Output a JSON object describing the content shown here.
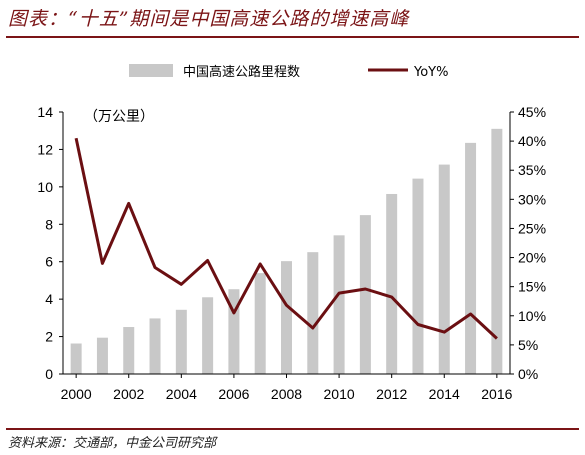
{
  "header": {
    "title": "图表：“十五”期间是中国高速公路的增速高峰"
  },
  "footer": {
    "source": "资料来源：交通部，中金公司研究部"
  },
  "colors": {
    "bar": "#c8c8c8",
    "line": "#6b0f12",
    "accent": "#7b1416"
  },
  "chart_data": {
    "type": "bar",
    "categories": [
      "2000",
      "2001",
      "2002",
      "2003",
      "2004",
      "2005",
      "2006",
      "2007",
      "2008",
      "2009",
      "2010",
      "2011",
      "2012",
      "2013",
      "2014",
      "2015",
      "2016"
    ],
    "x_tick_labels": [
      "2000",
      "2002",
      "2004",
      "2006",
      "2008",
      "2010",
      "2012",
      "2014",
      "2016"
    ],
    "unit_label": "（万公里）",
    "series": [
      {
        "name": "中国高速公路里程数",
        "type": "bar",
        "axis": "left",
        "values": [
          1.63,
          1.94,
          2.51,
          2.97,
          3.43,
          4.1,
          4.53,
          5.39,
          6.03,
          6.51,
          7.41,
          8.49,
          9.62,
          10.44,
          11.19,
          12.35,
          13.1
        ]
      },
      {
        "name": "YoY%",
        "type": "line",
        "axis": "right",
        "values": [
          40.5,
          19.0,
          29.3,
          18.3,
          15.4,
          19.5,
          10.5,
          18.9,
          11.8,
          7.9,
          13.9,
          14.6,
          13.2,
          8.5,
          7.2,
          10.3,
          6.1
        ]
      }
    ],
    "y_left": {
      "lim": [
        0,
        14
      ],
      "ticks": [
        "0",
        "2",
        "4",
        "6",
        "8",
        "10",
        "12",
        "14"
      ]
    },
    "y_right": {
      "lim": [
        0,
        45
      ],
      "ticks": [
        "0%",
        "5%",
        "10%",
        "15%",
        "20%",
        "25%",
        "30%",
        "35%",
        "40%",
        "45%"
      ]
    },
    "legend": {
      "position": "top",
      "entries": [
        "中国高速公路里程数",
        "YoY%"
      ]
    },
    "grid": false
  }
}
